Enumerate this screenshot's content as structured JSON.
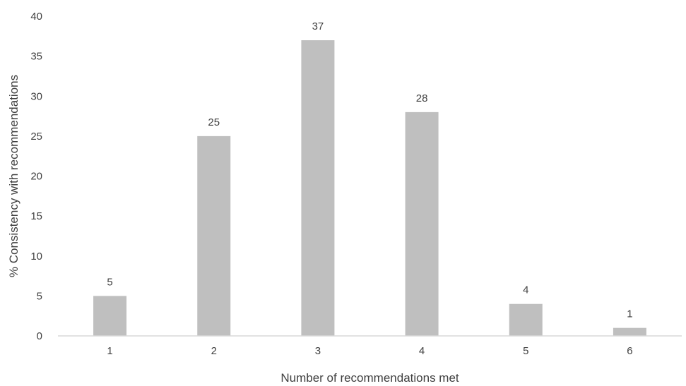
{
  "chart_data": {
    "type": "bar",
    "categories": [
      "1",
      "2",
      "3",
      "4",
      "5",
      "6"
    ],
    "values": [
      5,
      25,
      37,
      28,
      4,
      1
    ],
    "data_labels": [
      "5",
      "25",
      "37",
      "28",
      "4",
      "1"
    ],
    "xlabel": "Number of recommendations met",
    "ylabel": "% Consistency with recommendations",
    "ylim": [
      0,
      40
    ],
    "yticks": [
      "0",
      "5",
      "10",
      "15",
      "20",
      "25",
      "30",
      "35",
      "40"
    ],
    "grid": false,
    "legend": "none",
    "bar_color": "#bfbfbf",
    "axis_color": "#d9d9d9"
  }
}
